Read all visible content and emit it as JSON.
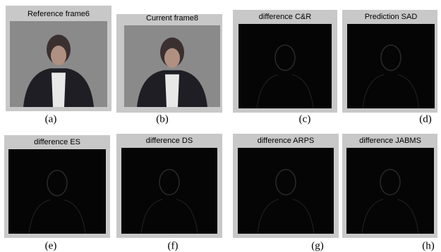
{
  "panels": [
    {
      "title": "Reference frame6",
      "caption": "(a)"
    },
    {
      "title": "Current frame8",
      "caption": "(b)"
    },
    {
      "title": "difference C&R",
      "caption": "(c)"
    },
    {
      "title": "Prediction SAD",
      "caption": "(d)"
    },
    {
      "title": "difference ES",
      "caption": "(e)"
    },
    {
      "title": "difference DS",
      "caption": "(f)"
    },
    {
      "title": "difference ARPS",
      "caption": "(g)"
    },
    {
      "title": "difference JABMS",
      "caption": "(h)"
    }
  ]
}
